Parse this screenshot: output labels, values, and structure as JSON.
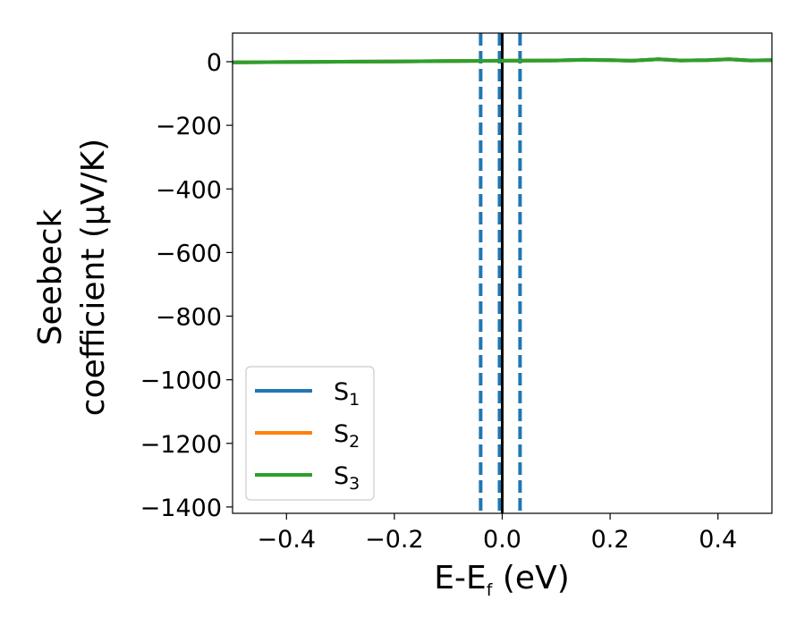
{
  "chart_data": {
    "type": "line",
    "xlabel": "E-E",
    "xlabel_subscript": "f",
    "xlabel_suffix": " (eV)",
    "ylabel_line1": "Seebeck",
    "ylabel_line2": "coefficient  (μV/K)",
    "xlim": [
      -0.5,
      0.5
    ],
    "ylim": [
      -1420,
      90
    ],
    "grid": false,
    "x_ticks": [
      -0.4,
      -0.2,
      0.0,
      0.2,
      0.4
    ],
    "x_tick_labels": [
      "−0.4",
      "−0.2",
      "0.0",
      "0.2",
      "0.4"
    ],
    "y_ticks": [
      0,
      -200,
      -400,
      -600,
      -800,
      -1000,
      -1200,
      -1400
    ],
    "y_tick_labels": [
      "0",
      "−200",
      "−400",
      "−600",
      "−800",
      "−1000",
      "−1200",
      "−1400"
    ],
    "legend_position": "lower-left",
    "series": [
      {
        "name": "S",
        "subscript": "1",
        "color": "#1f77b4",
        "x": [
          -0.5,
          -0.4,
          -0.3,
          -0.2,
          -0.1,
          0.0,
          0.1,
          0.15,
          0.2,
          0.24,
          0.29,
          0.33,
          0.38,
          0.42,
          0.46,
          0.5
        ],
        "y": [
          -2,
          -1,
          0,
          1,
          2,
          3,
          4,
          6,
          5,
          3,
          8,
          4,
          5,
          8,
          4,
          5
        ]
      },
      {
        "name": "S",
        "subscript": "2",
        "color": "#ff7f0e",
        "x": [
          -0.5,
          -0.4,
          -0.3,
          -0.2,
          -0.1,
          0.0,
          0.1,
          0.15,
          0.2,
          0.24,
          0.29,
          0.33,
          0.38,
          0.42,
          0.46,
          0.5
        ],
        "y": [
          -2,
          -1,
          0,
          1,
          2,
          3,
          4,
          6,
          5,
          3,
          8,
          4,
          5,
          8,
          4,
          5
        ]
      },
      {
        "name": "S",
        "subscript": "3",
        "color": "#2ca02c",
        "x": [
          -0.5,
          -0.4,
          -0.3,
          -0.2,
          -0.1,
          0.0,
          0.1,
          0.15,
          0.2,
          0.24,
          0.29,
          0.33,
          0.38,
          0.42,
          0.46,
          0.5
        ],
        "y": [
          -2,
          -1,
          0,
          1,
          2,
          3,
          4,
          6,
          5,
          3,
          8,
          4,
          5,
          8,
          4,
          5
        ]
      }
    ],
    "vertical_lines": [
      {
        "x": -0.04,
        "style": "dashed",
        "color": "#1f77b4"
      },
      {
        "x": -0.005,
        "style": "dashed",
        "color": "#1f77b4"
      },
      {
        "x": 0.033,
        "style": "dashed",
        "color": "#1f77b4"
      },
      {
        "x": 0.0,
        "style": "solid",
        "color": "#000000"
      }
    ]
  }
}
